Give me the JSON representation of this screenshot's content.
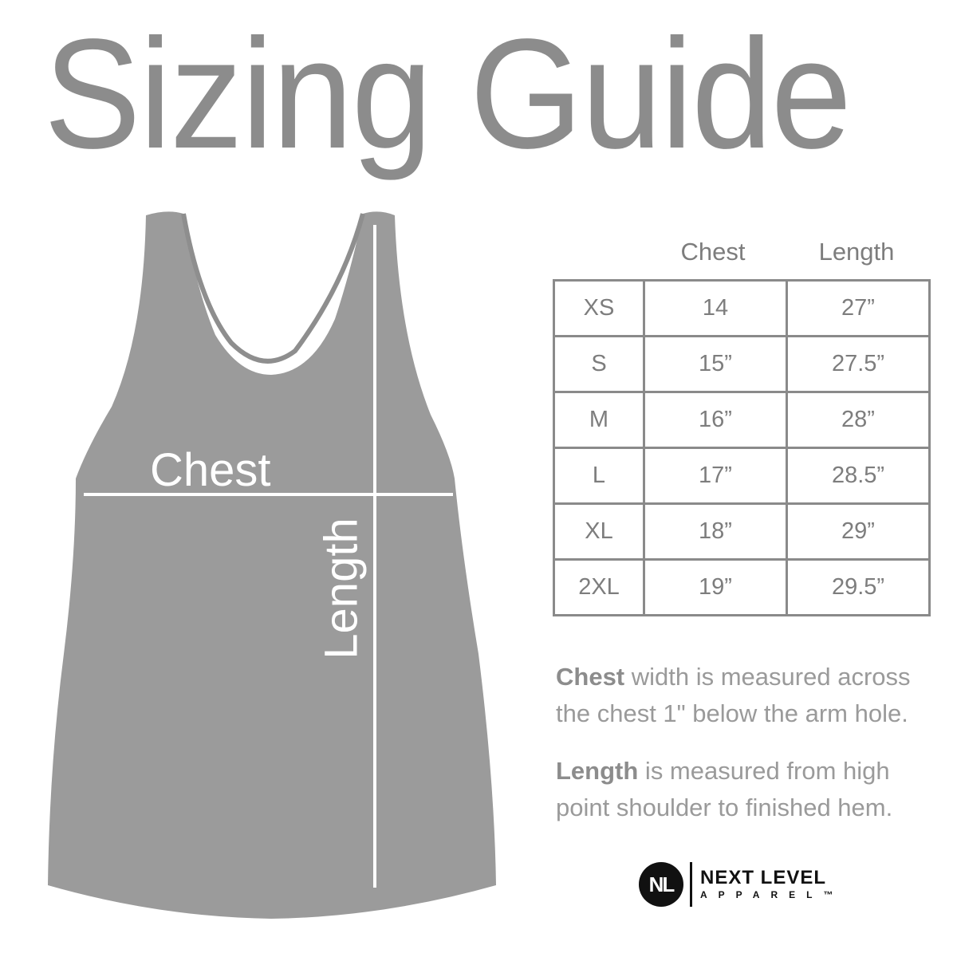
{
  "title": "Sizing Guide",
  "garment": {
    "chest_label": "Chest",
    "length_label": "Length",
    "color": "#9b9b9b"
  },
  "table": {
    "headers": [
      "Chest",
      "Length"
    ],
    "rows": [
      {
        "size": "XS",
        "chest": "14",
        "length": "27”"
      },
      {
        "size": "S",
        "chest": "15”",
        "length": "27.5”"
      },
      {
        "size": "M",
        "chest": "16”",
        "length": "28”"
      },
      {
        "size": "L",
        "chest": "17”",
        "length": "28.5”"
      },
      {
        "size": "XL",
        "chest": "18”",
        "length": "29”"
      },
      {
        "size": "2XL",
        "chest": "19”",
        "length": "29.5”"
      }
    ]
  },
  "notes": {
    "chest_term": "Chest",
    "chest_text": " width is measured across the chest 1\" below the arm hole.",
    "length_term": "Length",
    "length_text": " is measured from high point shoulder to finished hem."
  },
  "logo": {
    "mark": "NL",
    "line1": "NEXT LEVEL",
    "line2": "APPAREL™"
  }
}
